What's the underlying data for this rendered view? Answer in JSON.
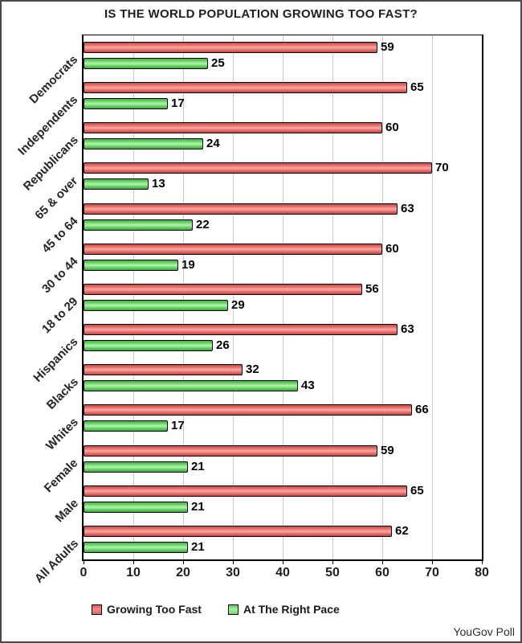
{
  "title": "IS THE WORLD POPULATION GROWING TOO FAST?",
  "footer": "YouGov Poll",
  "legend": {
    "items": [
      "Growing Too Fast",
      "At The Right Pace"
    ]
  },
  "chart_data": {
    "type": "bar",
    "orientation": "horizontal",
    "title": "IS THE WORLD POPULATION GROWING TOO FAST?",
    "categories": [
      "Democrats",
      "Independents",
      "Republicans",
      "65 & over",
      "45 to 64",
      "30 to 44",
      "18 to 29",
      "Hispanics",
      "Blacks",
      "Whites",
      "Female",
      "Male",
      "All Adults"
    ],
    "series": [
      {
        "name": "Growing Too Fast",
        "color": "#e06663",
        "values": [
          59,
          65,
          60,
          70,
          63,
          60,
          56,
          63,
          32,
          66,
          59,
          65,
          62
        ]
      },
      {
        "name": "At The Right Pace",
        "color": "#71d96e",
        "values": [
          25,
          17,
          24,
          13,
          22,
          19,
          29,
          26,
          43,
          17,
          21,
          21,
          21
        ]
      }
    ],
    "xlim": [
      0,
      80
    ],
    "x_ticks": [
      0,
      10,
      20,
      30,
      40,
      50,
      60,
      70,
      80
    ],
    "grid": "vertical",
    "value_labels": true,
    "legend_position": "bottom",
    "source": "YouGov Poll"
  }
}
